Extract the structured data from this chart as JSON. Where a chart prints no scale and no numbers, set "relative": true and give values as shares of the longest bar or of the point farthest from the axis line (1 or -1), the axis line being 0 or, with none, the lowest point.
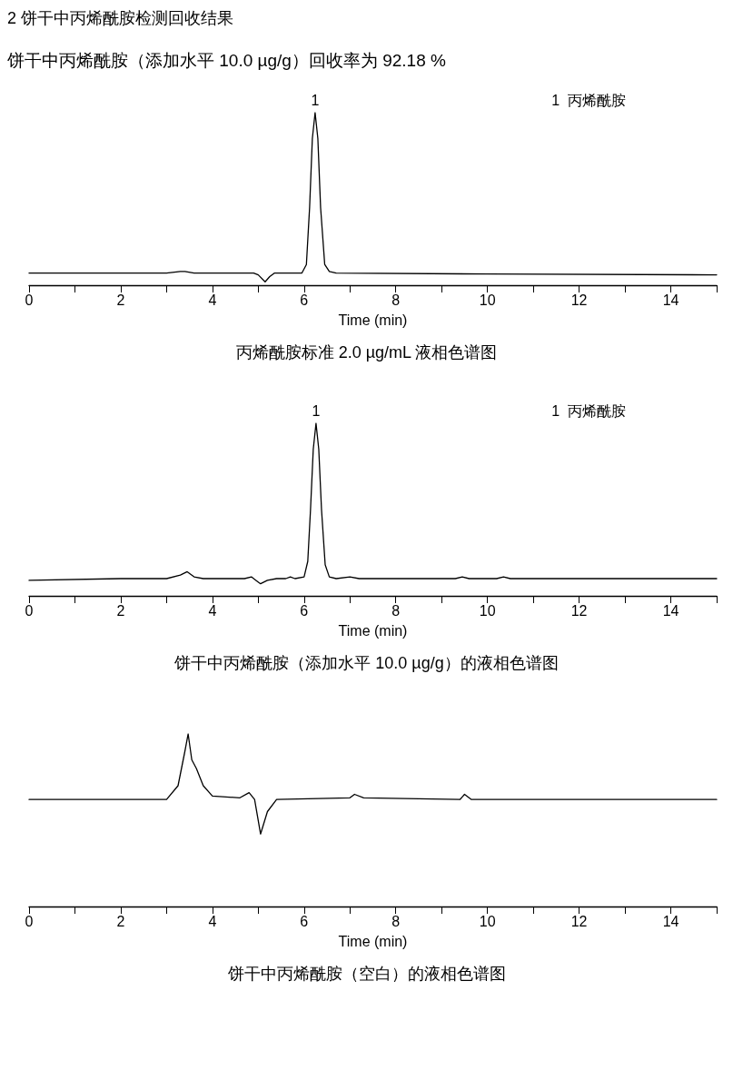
{
  "chart_data": [
    {
      "type": "line",
      "title": "2 饼干中丙烯酰胺检测回收结果",
      "subtitle": "饼干中丙烯酰胺（添加水平 10.0 µg/g）回收率为 92.18 %",
      "relative": true,
      "color": "#000000",
      "xlabel": "Time (min)",
      "x": [
        0,
        3.0,
        3.3,
        3.4,
        3.6,
        4.9,
        5.0,
        5.15,
        5.25,
        5.35,
        5.95,
        6.05,
        6.12,
        6.18,
        6.24,
        6.3,
        6.36,
        6.45,
        6.55,
        6.7,
        10,
        15
      ],
      "values": [
        0.07,
        0.07,
        0.08,
        0.08,
        0.07,
        0.07,
        0.06,
        0.02,
        0.05,
        0.07,
        0.07,
        0.12,
        0.45,
        0.85,
        1,
        0.85,
        0.45,
        0.12,
        0.08,
        0.07,
        0.065,
        0.06
      ],
      "xlim": [
        0,
        15
      ],
      "xticks": [
        0,
        {
          "value": 1,
          "label": null
        },
        2,
        {
          "value": 3,
          "label": null
        },
        4,
        {
          "value": 5,
          "label": null
        },
        6,
        {
          "value": 7,
          "label": null
        },
        8,
        {
          "value": 9,
          "label": null
        },
        10,
        {
          "value": 11,
          "label": null
        },
        12,
        {
          "value": 13,
          "label": null
        },
        14,
        {
          "value": 15,
          "label": null
        }
      ],
      "annotations": [
        "1  丙烯酰胺",
        {
          "text": "1",
          "x": 6.24,
          "y": 1
        },
        "丙烯酰胺标准 2.0 µg/mL 液相色谱图"
      ]
    },
    {
      "type": "line",
      "relative": true,
      "color": "#000000",
      "xlabel": "Time (min)",
      "x": [
        0,
        2,
        3.0,
        3.3,
        3.45,
        3.6,
        3.8,
        4.7,
        4.85,
        4.95,
        5.05,
        5.2,
        5.4,
        5.6,
        5.7,
        5.8,
        6.0,
        6.08,
        6.14,
        6.2,
        6.26,
        6.32,
        6.38,
        6.46,
        6.55,
        6.7,
        7.0,
        7.2,
        9.3,
        9.45,
        9.6,
        10.2,
        10.35,
        10.5,
        15
      ],
      "values": [
        0.09,
        0.1,
        0.1,
        0.12,
        0.14,
        0.11,
        0.1,
        0.1,
        0.11,
        0.09,
        0.07,
        0.09,
        0.1,
        0.1,
        0.11,
        0.1,
        0.11,
        0.2,
        0.5,
        0.85,
        1,
        0.85,
        0.5,
        0.18,
        0.11,
        0.1,
        0.11,
        0.1,
        0.1,
        0.11,
        0.1,
        0.1,
        0.11,
        0.1,
        0.1
      ],
      "xlim": [
        0,
        15
      ],
      "xticks": [
        0,
        {
          "value": 1,
          "label": null
        },
        2,
        {
          "value": 3,
          "label": null
        },
        4,
        {
          "value": 5,
          "label": null
        },
        6,
        {
          "value": 7,
          "label": null
        },
        8,
        {
          "value": 9,
          "label": null
        },
        10,
        {
          "value": 11,
          "label": null
        },
        12,
        {
          "value": 13,
          "label": null
        },
        14,
        {
          "value": 15,
          "label": null
        }
      ],
      "annotations": [
        "1  丙烯酰胺",
        {
          "text": "1",
          "x": 6.26,
          "y": 1
        },
        "饼干中丙烯酰胺（添加水平 10.0 µg/g）的液相色谱图"
      ]
    },
    {
      "type": "line",
      "relative": true,
      "color": "#000000",
      "xlabel": "Time (min)",
      "x": [
        0,
        3.0,
        3.25,
        3.4,
        3.47,
        3.55,
        3.65,
        3.8,
        4.0,
        4.6,
        4.8,
        4.92,
        5.05,
        5.2,
        5.4,
        7.0,
        7.1,
        7.3,
        9.4,
        9.5,
        9.65,
        15
      ],
      "values": [
        0.62,
        0.62,
        0.7,
        0.9,
        1,
        0.85,
        0.8,
        0.7,
        0.64,
        0.63,
        0.66,
        0.62,
        0.42,
        0.55,
        0.62,
        0.63,
        0.65,
        0.63,
        0.62,
        0.65,
        0.62,
        0.62
      ],
      "xlim": [
        0,
        15
      ],
      "xticks": [
        0,
        {
          "value": 1,
          "label": null
        },
        2,
        {
          "value": 3,
          "label": null
        },
        4,
        {
          "value": 5,
          "label": null
        },
        6,
        {
          "value": 7,
          "label": null
        },
        8,
        {
          "value": 9,
          "label": null
        },
        10,
        {
          "value": 11,
          "label": null
        },
        12,
        {
          "value": 13,
          "label": null
        },
        14,
        {
          "value": 15,
          "label": null
        }
      ],
      "annotations": [
        "饼干中丙烯酰胺（空白）的液相色谱图"
      ]
    }
  ]
}
